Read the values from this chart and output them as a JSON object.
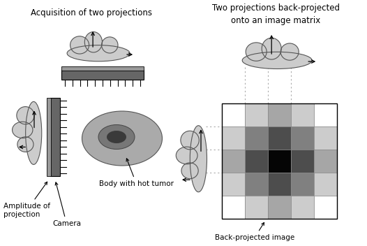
{
  "title_left": "Acquisition of two projections",
  "title_right": "Two projections back-projected\nonto an image matrix",
  "label_amplitude": "Amplitude of\nprojection",
  "label_camera": "Camera",
  "label_body": "Body with hot tumor",
  "label_backprojected": "Back-projected image",
  "bg_color": "#ffffff",
  "cloud_color": "#cccccc",
  "cloud_edge": "#555555",
  "camera_color": "#666666",
  "body_color": "#aaaaaa",
  "tumor_color": "#777777",
  "tumor_dark": "#3a3a3a",
  "grid_colors": [
    [
      1.0,
      0.8,
      0.65,
      0.8,
      1.0
    ],
    [
      0.8,
      0.5,
      0.3,
      0.5,
      0.8
    ],
    [
      0.65,
      0.3,
      0.02,
      0.3,
      0.65
    ],
    [
      0.8,
      0.5,
      0.3,
      0.5,
      0.8
    ],
    [
      1.0,
      0.8,
      0.65,
      0.8,
      1.0
    ]
  ],
  "dotted_color": "#aaaaaa",
  "tick_color": "#333333"
}
